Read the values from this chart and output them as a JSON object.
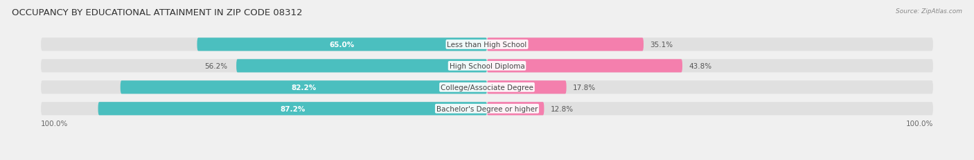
{
  "title": "OCCUPANCY BY EDUCATIONAL ATTAINMENT IN ZIP CODE 08312",
  "source": "Source: ZipAtlas.com",
  "categories": [
    "Less than High School",
    "High School Diploma",
    "College/Associate Degree",
    "Bachelor's Degree or higher"
  ],
  "owner_values": [
    65.0,
    56.2,
    82.2,
    87.2
  ],
  "renter_values": [
    35.1,
    43.8,
    17.8,
    12.8
  ],
  "owner_color": "#4BBFBF",
  "renter_color": "#F47FAD",
  "bar_height": 0.62,
  "background_color": "#f0f0f0",
  "bar_bg_color": "#e0e0e0",
  "axis_label_left": "100.0%",
  "axis_label_right": "100.0%",
  "title_fontsize": 9.5,
  "label_fontsize": 7.5,
  "category_fontsize": 7.5,
  "value_fontsize": 7.5,
  "owner_label_inside_threshold": 60.0
}
